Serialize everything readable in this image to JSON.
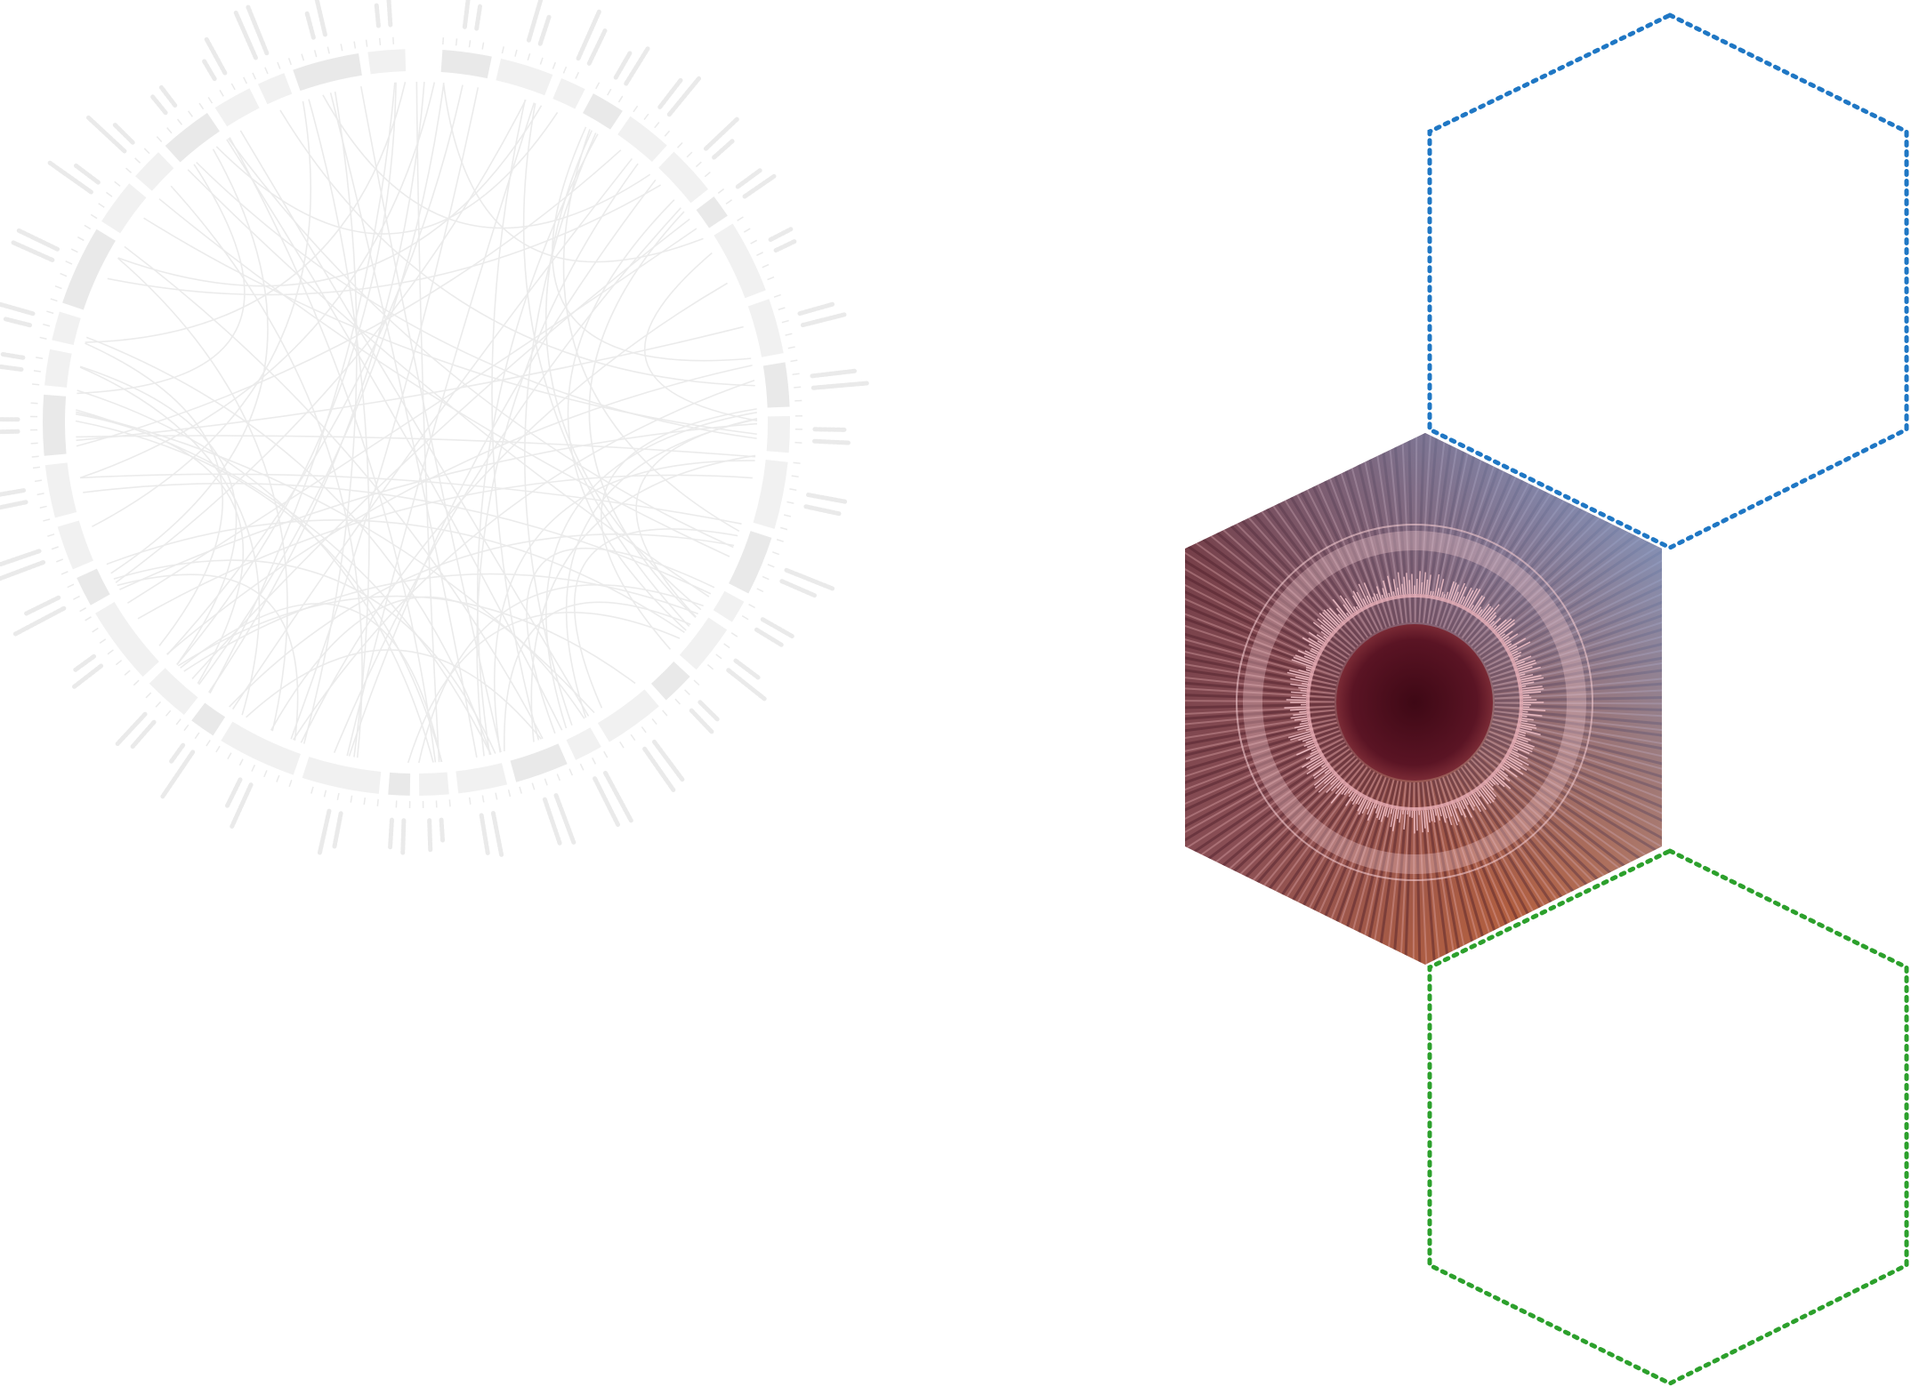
{
  "colors": {
    "background": "#ffffff",
    "circos_gray": "#e6e6e6",
    "circos_label_gray": "#d9d9d9",
    "hex_outline_top": "#1f77c4",
    "hex_outline_bottom": "#2ca02c",
    "photo_mauve": "#8a4f55",
    "photo_blue": "#7ea3d6",
    "photo_orange": "#d0784a",
    "photo_center": "#4a0c19"
  },
  "decor": {
    "faded_circos_plot": "faded-circos-chord-diagram",
    "photo_hexagon": "mushroom-gills-with-circular-genome-overlay",
    "dotted_hexagons": [
      "top-right-blue-dotted-hexagon",
      "bottom-right-green-dotted-hexagon"
    ]
  }
}
